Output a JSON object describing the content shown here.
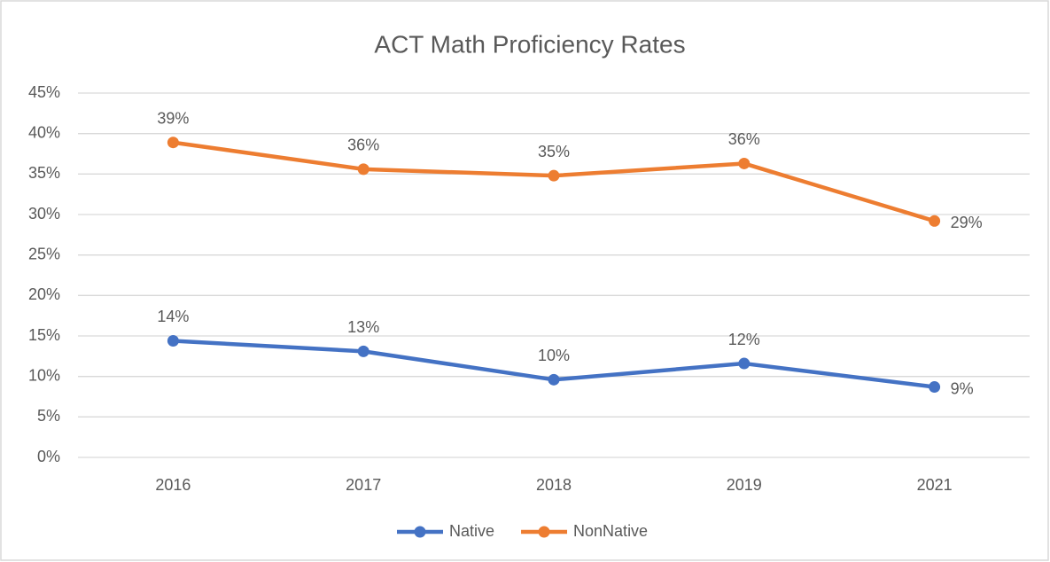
{
  "chart_data": {
    "type": "line",
    "title": "ACT Math Proficiency Rates",
    "categories": [
      "2016",
      "2017",
      "2018",
      "2019",
      "2021"
    ],
    "series": [
      {
        "name": "Native",
        "color": "#4472c4",
        "values": [
          14.4,
          13.1,
          9.6,
          11.6,
          8.7
        ],
        "value_labels": [
          "14%",
          "13%",
          "10%",
          "12%",
          "9%"
        ]
      },
      {
        "name": "NonNative",
        "color": "#ed7d31",
        "values": [
          38.9,
          35.6,
          34.8,
          36.3,
          29.2
        ],
        "value_labels": [
          "39%",
          "36%",
          "35%",
          "36%",
          "29%"
        ]
      }
    ],
    "ylim": [
      0,
      45
    ],
    "yticks": [
      {
        "value": 0,
        "label": "0%"
      },
      {
        "value": 5,
        "label": "5%"
      },
      {
        "value": 10,
        "label": "10%"
      },
      {
        "value": 15,
        "label": "15%"
      },
      {
        "value": 20,
        "label": "20%"
      },
      {
        "value": 25,
        "label": "25%"
      },
      {
        "value": 30,
        "label": "30%"
      },
      {
        "value": 35,
        "label": "35%"
      },
      {
        "value": 40,
        "label": "40%"
      },
      {
        "value": 45,
        "label": "45%"
      }
    ],
    "grid": true,
    "legend": "bottom"
  }
}
